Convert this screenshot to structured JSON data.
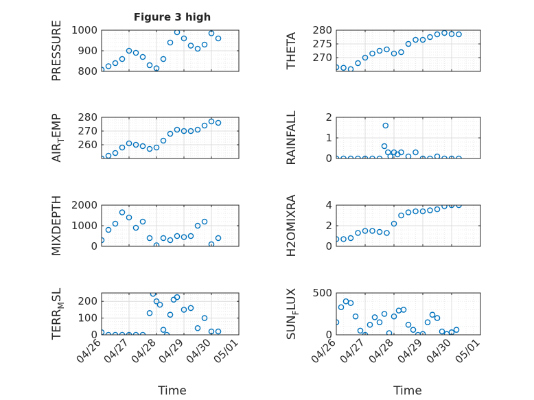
{
  "figure": {
    "title": "Figure 3 high",
    "xlabel": "Time"
  },
  "chart_data": [
    {
      "type": "scatter",
      "panel": "pressure",
      "ylabel": "PRESSURE",
      "ylim": [
        800,
        1000
      ],
      "yticks": [
        800,
        900,
        1000
      ],
      "yticklabels": [
        "800",
        "900",
        "1000"
      ],
      "x_range": [
        "04/26",
        "04/30"
      ],
      "color": "#0072BD",
      "x": [
        "04/26 00:00",
        "04/26 06:00",
        "04/26 12:00",
        "04/26 18:00",
        "04/27 00:00",
        "04/27 06:00",
        "04/27 12:00",
        "04/27 18:00",
        "04/28 00:00",
        "04/28 06:00",
        "04/28 12:00",
        "04/28 18:00",
        "04/29 00:00",
        "04/29 06:00",
        "04/29 12:00",
        "04/29 18:00",
        "04/30 00:00",
        "04/30 06:00"
      ],
      "y": [
        808,
        825,
        840,
        860,
        900,
        890,
        870,
        830,
        815,
        860,
        940,
        990,
        960,
        925,
        910,
        930,
        985,
        960
      ]
    },
    {
      "type": "scatter",
      "panel": "theta",
      "ylabel": "THETA",
      "ylim": [
        265,
        280
      ],
      "yticks": [
        270,
        275,
        280
      ],
      "yticklabels": [
        "270",
        "275",
        "280"
      ],
      "x_range": [
        "04/26",
        "04/30"
      ],
      "color": "#0072BD",
      "x": [
        "04/26 00:00",
        "04/26 06:00",
        "04/26 12:00",
        "04/26 18:00",
        "04/27 00:00",
        "04/27 06:00",
        "04/27 12:00",
        "04/27 18:00",
        "04/28 00:00",
        "04/28 06:00",
        "04/28 12:00",
        "04/28 18:00",
        "04/29 00:00",
        "04/29 06:00",
        "04/29 12:00",
        "04/29 18:00",
        "04/30 00:00",
        "04/30 06:00"
      ],
      "y": [
        266.5,
        266.3,
        265.8,
        268,
        270,
        271.5,
        272.5,
        273,
        271.5,
        272,
        275,
        276.5,
        276.5,
        277.5,
        278.5,
        279,
        278.6,
        278.5
      ]
    },
    {
      "type": "scatter",
      "panel": "air_temp",
      "ylabel": "AIR",
      "ylabel_sub": "T",
      "ylabel_rest": "EMP",
      "ylim": [
        250,
        280
      ],
      "yticks": [
        260,
        270,
        280
      ],
      "yticklabels": [
        "260",
        "270",
        "280"
      ],
      "x_range": [
        "04/26",
        "04/30"
      ],
      "color": "#0072BD",
      "x": [
        "04/26 00:00",
        "04/26 06:00",
        "04/26 12:00",
        "04/26 18:00",
        "04/27 00:00",
        "04/27 06:00",
        "04/27 12:00",
        "04/27 18:00",
        "04/28 00:00",
        "04/28 06:00",
        "04/28 12:00",
        "04/28 18:00",
        "04/29 00:00",
        "04/29 06:00",
        "04/29 12:00",
        "04/29 18:00",
        "04/30 00:00",
        "04/30 06:00"
      ],
      "y": [
        250,
        252,
        254,
        258,
        261,
        260,
        259,
        257,
        258,
        263,
        268,
        271,
        270,
        270,
        271,
        274,
        277,
        276
      ]
    },
    {
      "type": "scatter",
      "panel": "rainfall",
      "ylabel": "RAINFALL",
      "ylim": [
        0,
        2
      ],
      "yticks": [
        0,
        1,
        2
      ],
      "yticklabels": [
        "0",
        "1",
        "2"
      ],
      "x_range": [
        "04/26",
        "04/30"
      ],
      "color": "#0072BD",
      "x": [
        "04/26 00:00",
        "04/26 06:00",
        "04/26 12:00",
        "04/26 18:00",
        "04/27 00:00",
        "04/27 06:00",
        "04/27 12:00",
        "04/27 16:00",
        "04/27 17:00",
        "04/27 19:00",
        "04/27 21:00",
        "04/28 00:00",
        "04/28 03:00",
        "04/28 06:00",
        "04/28 12:00",
        "04/28 18:00",
        "04/29 00:00",
        "04/29 06:00",
        "04/29 12:00",
        "04/29 18:00",
        "04/30 00:00",
        "04/30 06:00"
      ],
      "y": [
        0,
        0,
        0,
        0,
        0,
        0,
        0,
        0.6,
        1.6,
        0.3,
        0.1,
        0.3,
        0.2,
        0.3,
        0.1,
        0.3,
        0,
        0,
        0.1,
        0,
        0,
        0
      ]
    },
    {
      "type": "scatter",
      "panel": "mixdepth",
      "ylabel": "MIXDEPTH",
      "ylim": [
        0,
        2000
      ],
      "yticks": [
        0,
        1000,
        2000
      ],
      "yticklabels": [
        "0",
        "1000",
        "2000"
      ],
      "x_range": [
        "04/26",
        "04/30"
      ],
      "color": "#0072BD",
      "x": [
        "04/26 00:00",
        "04/26 06:00",
        "04/26 12:00",
        "04/26 18:00",
        "04/27 00:00",
        "04/27 06:00",
        "04/27 12:00",
        "04/27 18:00",
        "04/28 00:00",
        "04/28 06:00",
        "04/28 12:00",
        "04/28 18:00",
        "04/29 00:00",
        "04/29 06:00",
        "04/29 12:00",
        "04/29 18:00",
        "04/30 00:00",
        "04/30 06:00"
      ],
      "y": [
        300,
        800,
        1100,
        1650,
        1400,
        900,
        1200,
        400,
        50,
        400,
        300,
        500,
        450,
        500,
        1000,
        1200,
        100,
        400
      ]
    },
    {
      "type": "scatter",
      "panel": "h2omixra",
      "ylabel": "H2OMIXRA",
      "ylim": [
        0,
        4
      ],
      "yticks": [
        0,
        2,
        4
      ],
      "yticklabels": [
        "0",
        "2",
        "4"
      ],
      "x_range": [
        "04/26",
        "04/30"
      ],
      "color": "#0072BD",
      "x": [
        "04/26 00:00",
        "04/26 06:00",
        "04/26 12:00",
        "04/26 18:00",
        "04/27 00:00",
        "04/27 06:00",
        "04/27 12:00",
        "04/27 18:00",
        "04/28 00:00",
        "04/28 06:00",
        "04/28 12:00",
        "04/28 18:00",
        "04/29 00:00",
        "04/29 06:00",
        "04/29 12:00",
        "04/29 18:00",
        "04/30 00:00",
        "04/30 06:00"
      ],
      "y": [
        0.7,
        0.7,
        0.8,
        1.3,
        1.5,
        1.5,
        1.4,
        1.3,
        2.2,
        3.0,
        3.3,
        3.4,
        3.4,
        3.5,
        3.6,
        3.9,
        4.0,
        4.0
      ]
    },
    {
      "type": "scatter",
      "panel": "terr_msl",
      "ylabel": "TERR",
      "ylabel_sub": "M",
      "ylabel_rest": "SL",
      "ylim": [
        0,
        250
      ],
      "yticks": [
        0,
        100,
        200
      ],
      "yticklabels": [
        "0",
        "100",
        "200"
      ],
      "xticks": [
        "04/26",
        "04/27",
        "04/28",
        "04/29",
        "04/30",
        "05/01"
      ],
      "x_range": [
        "04/26",
        "05/01"
      ],
      "color": "#0072BD",
      "x": [
        "04/26 00:00",
        "04/26 06:00",
        "04/26 12:00",
        "04/26 18:00",
        "04/27 00:00",
        "04/27 06:00",
        "04/27 12:00",
        "04/27 18:00",
        "04/27 21:00",
        "04/28 00:00",
        "04/28 03:00",
        "04/28 06:00",
        "04/28 09:00",
        "04/28 12:00",
        "04/28 15:00",
        "04/28 18:00",
        "04/29 00:00",
        "04/29 06:00",
        "04/29 12:00",
        "04/29 18:00",
        "04/30 00:00",
        "04/30 06:00"
      ],
      "y": [
        15,
        0,
        0,
        0,
        0,
        0,
        0,
        130,
        245,
        200,
        180,
        30,
        0,
        120,
        210,
        225,
        150,
        160,
        40,
        100,
        20,
        20
      ]
    },
    {
      "type": "scatter",
      "panel": "sun_flux",
      "ylabel": "SUN",
      "ylabel_sub": "F",
      "ylabel_rest": "LUX",
      "ylim": [
        0,
        500
      ],
      "yticks": [
        0,
        500
      ],
      "yticklabels": [
        "0",
        "500"
      ],
      "xticks": [
        "04/26",
        "04/27",
        "04/28",
        "04/29",
        "04/30",
        "05/01"
      ],
      "x_range": [
        "04/26",
        "05/01"
      ],
      "color": "#0072BD",
      "x": [
        "04/26 00:00",
        "04/26 04:00",
        "04/26 08:00",
        "04/26 12:00",
        "04/26 16:00",
        "04/26 20:00",
        "04/27 00:00",
        "04/27 04:00",
        "04/27 08:00",
        "04/27 12:00",
        "04/27 16:00",
        "04/27 20:00",
        "04/28 00:00",
        "04/28 04:00",
        "04/28 08:00",
        "04/28 12:00",
        "04/28 16:00",
        "04/28 20:00",
        "04/29 00:00",
        "04/29 04:00",
        "04/29 08:00",
        "04/29 12:00",
        "04/29 16:00",
        "04/29 20:00",
        "04/30 00:00",
        "04/30 04:00"
      ],
      "y": [
        150,
        330,
        400,
        380,
        220,
        50,
        0,
        120,
        210,
        150,
        250,
        20,
        220,
        290,
        300,
        120,
        60,
        0,
        10,
        150,
        240,
        200,
        40,
        10,
        30,
        60
      ]
    }
  ]
}
